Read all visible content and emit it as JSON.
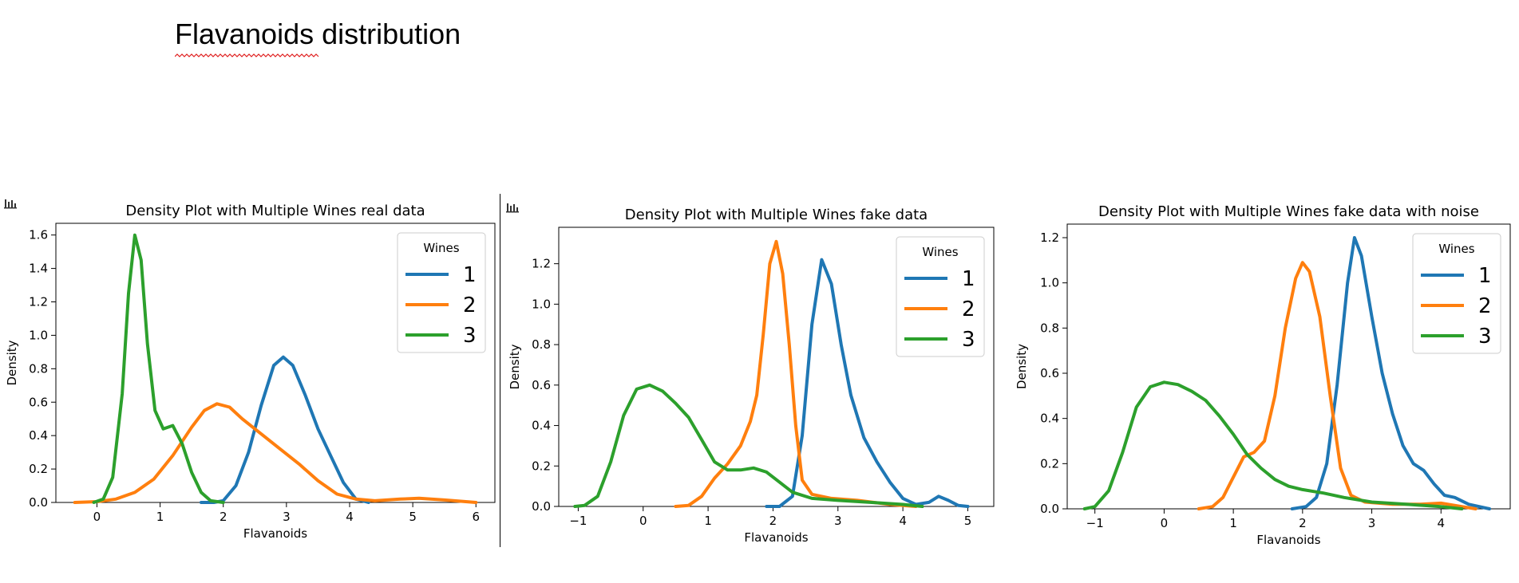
{
  "page": {
    "title": "Flavanoids distribution"
  },
  "chart_data": [
    {
      "type": "line",
      "title": "Density Plot with Multiple Wines real data",
      "xlabel": "Flavanoids",
      "ylabel": "Density",
      "xlim": [
        -0.65,
        6.3
      ],
      "ylim": [
        0,
        1.67
      ],
      "xticks": [
        0,
        1,
        2,
        3,
        4,
        5,
        6
      ],
      "xtick_labels": [
        "0",
        "1",
        "2",
        "3",
        "4",
        "5",
        "6"
      ],
      "yticks": [
        0,
        0.2,
        0.4,
        0.6,
        0.8,
        1.0,
        1.2,
        1.4,
        1.6
      ],
      "ytick_labels": [
        "0.0",
        "0.2",
        "0.4",
        "0.6",
        "0.8",
        "1.0",
        "1.2",
        "1.4",
        "1.6"
      ],
      "grid": false,
      "legend": {
        "title": "Wines",
        "placement": "top-right"
      },
      "series": [
        {
          "name": "1",
          "color": "#1f77b4",
          "points": [
            [
              1.65,
              0
            ],
            [
              1.85,
              0
            ],
            [
              2.0,
              0.01
            ],
            [
              2.2,
              0.1
            ],
            [
              2.4,
              0.3
            ],
            [
              2.6,
              0.58
            ],
            [
              2.8,
              0.82
            ],
            [
              2.95,
              0.87
            ],
            [
              3.1,
              0.82
            ],
            [
              3.3,
              0.64
            ],
            [
              3.5,
              0.44
            ],
            [
              3.7,
              0.28
            ],
            [
              3.9,
              0.12
            ],
            [
              4.1,
              0.02
            ],
            [
              4.3,
              0
            ]
          ]
        },
        {
          "name": "2",
          "color": "#ff7f0e",
          "points": [
            [
              -0.35,
              0
            ],
            [
              0,
              0.005
            ],
            [
              0.3,
              0.02
            ],
            [
              0.6,
              0.06
            ],
            [
              0.9,
              0.14
            ],
            [
              1.2,
              0.28
            ],
            [
              1.5,
              0.45
            ],
            [
              1.7,
              0.55
            ],
            [
              1.9,
              0.59
            ],
            [
              2.1,
              0.57
            ],
            [
              2.3,
              0.5
            ],
            [
              2.6,
              0.41
            ],
            [
              2.9,
              0.32
            ],
            [
              3.2,
              0.23
            ],
            [
              3.5,
              0.13
            ],
            [
              3.8,
              0.05
            ],
            [
              4.1,
              0.02
            ],
            [
              4.4,
              0.01
            ],
            [
              4.8,
              0.02
            ],
            [
              5.1,
              0.025
            ],
            [
              5.5,
              0.015
            ],
            [
              6.0,
              0
            ]
          ]
        },
        {
          "name": "3",
          "color": "#2ca02c",
          "points": [
            [
              -0.05,
              0
            ],
            [
              0.1,
              0.02
            ],
            [
              0.25,
              0.15
            ],
            [
              0.4,
              0.65
            ],
            [
              0.5,
              1.25
            ],
            [
              0.6,
              1.6
            ],
            [
              0.7,
              1.45
            ],
            [
              0.8,
              0.95
            ],
            [
              0.92,
              0.55
            ],
            [
              1.05,
              0.44
            ],
            [
              1.2,
              0.46
            ],
            [
              1.35,
              0.35
            ],
            [
              1.5,
              0.18
            ],
            [
              1.65,
              0.06
            ],
            [
              1.8,
              0.01
            ],
            [
              2.0,
              0
            ]
          ]
        }
      ]
    },
    {
      "type": "line",
      "title": "Density Plot with Multiple Wines fake data",
      "xlabel": "Flavanoids",
      "ylabel": "Density",
      "xlim": [
        -1.3,
        5.4
      ],
      "ylim": [
        0,
        1.38
      ],
      "xticks": [
        -1,
        0,
        1,
        2,
        3,
        4,
        5
      ],
      "xtick_labels": [
        "−1",
        "0",
        "1",
        "2",
        "3",
        "4",
        "5"
      ],
      "yticks": [
        0,
        0.2,
        0.4,
        0.6,
        0.8,
        1.0,
        1.2
      ],
      "ytick_labels": [
        "0.0",
        "0.2",
        "0.4",
        "0.6",
        "0.8",
        "1.0",
        "1.2"
      ],
      "grid": false,
      "legend": {
        "title": "Wines",
        "placement": "top-right"
      },
      "series": [
        {
          "name": "1",
          "color": "#1f77b4",
          "points": [
            [
              1.9,
              0
            ],
            [
              2.1,
              0
            ],
            [
              2.3,
              0.05
            ],
            [
              2.45,
              0.35
            ],
            [
              2.6,
              0.9
            ],
            [
              2.75,
              1.22
            ],
            [
              2.9,
              1.1
            ],
            [
              3.05,
              0.8
            ],
            [
              3.2,
              0.55
            ],
            [
              3.4,
              0.34
            ],
            [
              3.6,
              0.22
            ],
            [
              3.8,
              0.12
            ],
            [
              4.0,
              0.04
            ],
            [
              4.2,
              0.01
            ],
            [
              4.4,
              0.02
            ],
            [
              4.55,
              0.05
            ],
            [
              4.7,
              0.03
            ],
            [
              4.85,
              0.005
            ],
            [
              5.0,
              0
            ]
          ]
        },
        {
          "name": "2",
          "color": "#ff7f0e",
          "points": [
            [
              0.5,
              0
            ],
            [
              0.7,
              0.005
            ],
            [
              0.9,
              0.05
            ],
            [
              1.1,
              0.14
            ],
            [
              1.3,
              0.21
            ],
            [
              1.5,
              0.3
            ],
            [
              1.65,
              0.42
            ],
            [
              1.75,
              0.55
            ],
            [
              1.85,
              0.85
            ],
            [
              1.95,
              1.2
            ],
            [
              2.05,
              1.31
            ],
            [
              2.15,
              1.15
            ],
            [
              2.25,
              0.8
            ],
            [
              2.35,
              0.4
            ],
            [
              2.45,
              0.13
            ],
            [
              2.6,
              0.06
            ],
            [
              2.9,
              0.04
            ],
            [
              3.3,
              0.03
            ],
            [
              3.8,
              0.01
            ],
            [
              4.2,
              0
            ]
          ]
        },
        {
          "name": "3",
          "color": "#2ca02c",
          "points": [
            [
              -1.05,
              0
            ],
            [
              -0.9,
              0.005
            ],
            [
              -0.7,
              0.05
            ],
            [
              -0.5,
              0.22
            ],
            [
              -0.3,
              0.45
            ],
            [
              -0.1,
              0.58
            ],
            [
              0.1,
              0.6
            ],
            [
              0.3,
              0.57
            ],
            [
              0.5,
              0.51
            ],
            [
              0.7,
              0.44
            ],
            [
              0.9,
              0.33
            ],
            [
              1.1,
              0.22
            ],
            [
              1.3,
              0.18
            ],
            [
              1.5,
              0.18
            ],
            [
              1.7,
              0.19
            ],
            [
              1.9,
              0.17
            ],
            [
              2.1,
              0.12
            ],
            [
              2.3,
              0.07
            ],
            [
              2.6,
              0.04
            ],
            [
              3.0,
              0.03
            ],
            [
              3.5,
              0.02
            ],
            [
              4.0,
              0.01
            ],
            [
              4.3,
              0
            ]
          ]
        }
      ]
    },
    {
      "type": "line",
      "title": "Density Plot with Multiple Wines fake data with noise",
      "xlabel": "Flavanoids",
      "ylabel": "Density",
      "xlim": [
        -1.4,
        5.0
      ],
      "ylim": [
        0,
        1.26
      ],
      "xticks": [
        -1,
        0,
        1,
        2,
        3,
        4
      ],
      "xtick_labels": [
        "−1",
        "0",
        "1",
        "2",
        "3",
        "4"
      ],
      "yticks": [
        0,
        0.2,
        0.4,
        0.6,
        0.8,
        1.0,
        1.2
      ],
      "ytick_labels": [
        "0.0",
        "0.2",
        "0.4",
        "0.6",
        "0.8",
        "1.0",
        "1.2"
      ],
      "grid": false,
      "legend": {
        "title": "Wines",
        "placement": "top-right"
      },
      "series": [
        {
          "name": "1",
          "color": "#1f77b4",
          "points": [
            [
              1.85,
              0
            ],
            [
              2.05,
              0.01
            ],
            [
              2.2,
              0.05
            ],
            [
              2.35,
              0.2
            ],
            [
              2.5,
              0.55
            ],
            [
              2.65,
              1.0
            ],
            [
              2.75,
              1.2
            ],
            [
              2.85,
              1.12
            ],
            [
              3.0,
              0.85
            ],
            [
              3.15,
              0.6
            ],
            [
              3.3,
              0.42
            ],
            [
              3.45,
              0.28
            ],
            [
              3.6,
              0.2
            ],
            [
              3.75,
              0.17
            ],
            [
              3.9,
              0.11
            ],
            [
              4.05,
              0.06
            ],
            [
              4.2,
              0.05
            ],
            [
              4.4,
              0.02
            ],
            [
              4.7,
              0
            ]
          ]
        },
        {
          "name": "2",
          "color": "#ff7f0e",
          "points": [
            [
              0.5,
              0
            ],
            [
              0.7,
              0.01
            ],
            [
              0.85,
              0.05
            ],
            [
              1.0,
              0.14
            ],
            [
              1.15,
              0.23
            ],
            [
              1.3,
              0.25
            ],
            [
              1.45,
              0.3
            ],
            [
              1.6,
              0.5
            ],
            [
              1.75,
              0.8
            ],
            [
              1.9,
              1.02
            ],
            [
              2.0,
              1.09
            ],
            [
              2.1,
              1.05
            ],
            [
              2.25,
              0.85
            ],
            [
              2.4,
              0.5
            ],
            [
              2.55,
              0.18
            ],
            [
              2.7,
              0.06
            ],
            [
              2.9,
              0.03
            ],
            [
              3.3,
              0.02
            ],
            [
              3.7,
              0.02
            ],
            [
              4.0,
              0.025
            ],
            [
              4.3,
              0.01
            ],
            [
              4.5,
              0
            ]
          ]
        },
        {
          "name": "3",
          "color": "#2ca02c",
          "points": [
            [
              -1.15,
              0
            ],
            [
              -1.0,
              0.01
            ],
            [
              -0.8,
              0.08
            ],
            [
              -0.6,
              0.25
            ],
            [
              -0.4,
              0.45
            ],
            [
              -0.2,
              0.54
            ],
            [
              0.0,
              0.56
            ],
            [
              0.2,
              0.55
            ],
            [
              0.4,
              0.52
            ],
            [
              0.6,
              0.48
            ],
            [
              0.8,
              0.41
            ],
            [
              1.0,
              0.33
            ],
            [
              1.2,
              0.24
            ],
            [
              1.4,
              0.18
            ],
            [
              1.6,
              0.13
            ],
            [
              1.8,
              0.1
            ],
            [
              2.0,
              0.085
            ],
            [
              2.3,
              0.07
            ],
            [
              2.6,
              0.05
            ],
            [
              3.0,
              0.03
            ],
            [
              3.5,
              0.02
            ],
            [
              4.0,
              0.01
            ],
            [
              4.3,
              0
            ]
          ]
        }
      ]
    }
  ]
}
